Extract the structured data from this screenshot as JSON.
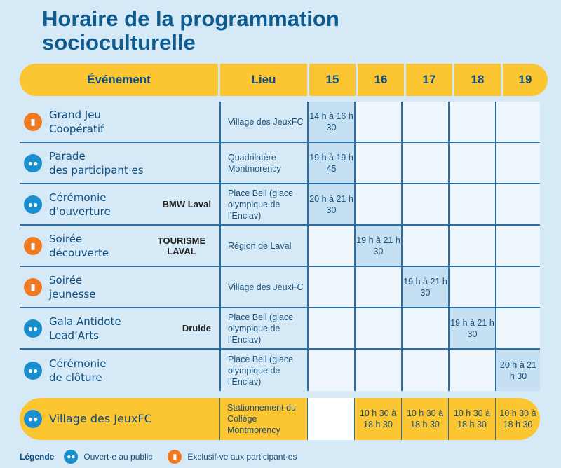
{
  "title": "Horaire de la programmation socioculturelle",
  "headers": [
    "Événement",
    "Lieu",
    "15",
    "16",
    "17",
    "18",
    "19"
  ],
  "rows": [
    {
      "name": "Grand Jeu\nCoopératif",
      "type": "exclusive",
      "lieu": "Village des JeuxFC",
      "days": [
        "14 h à 16 h 30",
        "",
        "",
        "",
        ""
      ]
    },
    {
      "name": "Parade\ndes participant·es",
      "type": "public",
      "lieu": "Quadrilatère Montmorency",
      "days": [
        "19 h à 19 h 45",
        "",
        "",
        "",
        ""
      ]
    },
    {
      "name": "Cérémonie\nd’ouverture",
      "type": "public",
      "sponsor": "BMW Laval",
      "lieu": "Place Bell (glace olympique de l’Enclav)",
      "days": [
        "20 h à 21 h 30",
        "",
        "",
        "",
        ""
      ]
    },
    {
      "name": "Soirée\ndécouverte",
      "type": "exclusive",
      "sponsor": "TOURISME LAVAL",
      "lieu": "Région de Laval",
      "days": [
        "",
        "19 h à 21 h 30",
        "",
        "",
        ""
      ]
    },
    {
      "name": "Soirée\njeunesse",
      "type": "exclusive",
      "lieu": "Village des JeuxFC",
      "days": [
        "",
        "",
        "19 h à 21 h 30",
        "",
        ""
      ]
    },
    {
      "name": "Gala Antidote\nLead’Arts",
      "type": "public",
      "sponsor": "Druide",
      "lieu": "Place Bell (glace olympique de l’Enclav)",
      "days": [
        "",
        "",
        "",
        "19 h à 21 h 30",
        ""
      ]
    },
    {
      "name": "Cérémonie\nde clôture",
      "type": "public",
      "lieu": "Place Bell (glace olympique de l’Enclav)",
      "days": [
        "",
        "",
        "",
        "",
        "20 h à 21 h 30"
      ]
    }
  ],
  "village": {
    "name": "Village des JeuxFC",
    "lieu": "Stationnement du Collège Montmorency",
    "days": [
      "",
      "10 h 30 à 18 h 30",
      "10 h 30 à 18 h 30",
      "10 h 30 à 18 h 30",
      "10 h 30 à 18 h 30"
    ]
  },
  "legend": {
    "title": "Légende",
    "public": "Ouvert·e au public",
    "exclusive": "Exclusif·ve aux participant·es"
  },
  "colors": {
    "yellow": "#fcc633",
    "blue": "#0d4f82",
    "public_icon": "#1a8fd0",
    "exclusive_icon": "#f07a22"
  },
  "icons": {
    "public": "group-icon",
    "exclusive": "badge-icon"
  }
}
